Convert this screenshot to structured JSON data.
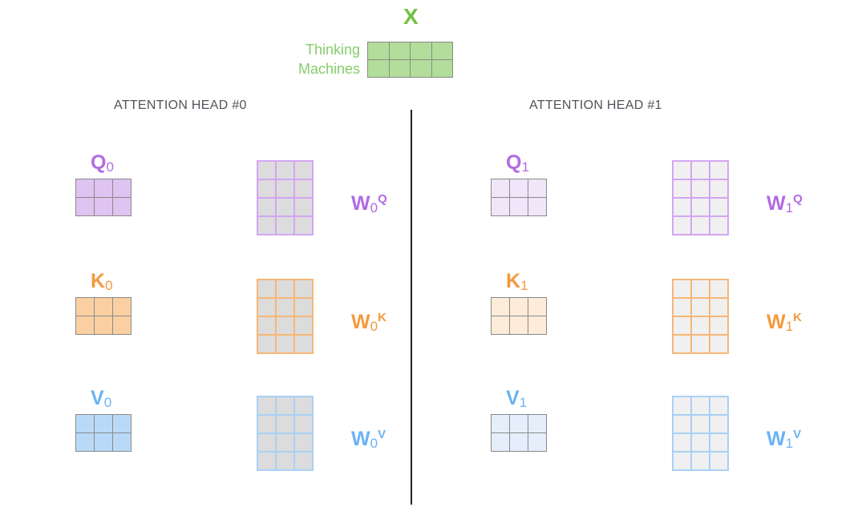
{
  "input": {
    "label": "X",
    "words": [
      "Thinking",
      "Machines"
    ],
    "color": "#74c044",
    "fill": "#b2dd9a"
  },
  "heads": [
    {
      "title": "ATTENTION HEAD #0",
      "index": "0",
      "rows": [
        {
          "name": "Q",
          "weight": "W",
          "sup": "Q",
          "color": "#b36ae2",
          "fill": "#dfc3f0",
          "wborder": "#d3a6f2",
          "wfill": "#dcdcdc"
        },
        {
          "name": "K",
          "weight": "W",
          "sup": "K",
          "color": "#f39a3c",
          "fill": "#fad0a2",
          "wborder": "#f6b775",
          "wfill": "#dcdcdc"
        },
        {
          "name": "V",
          "weight": "W",
          "sup": "V",
          "color": "#6cb2f3",
          "fill": "#b9d9f8",
          "wborder": "#a9d0f7",
          "wfill": "#dcdcdc"
        }
      ]
    },
    {
      "title": "ATTENTION HEAD #1",
      "index": "1",
      "rows": [
        {
          "name": "Q",
          "weight": "W",
          "sup": "Q",
          "color": "#b36ae2",
          "fill": "#f1e5f9",
          "wborder": "#d3a6f2",
          "wfill": "#f0f0f0"
        },
        {
          "name": "K",
          "weight": "W",
          "sup": "K",
          "color": "#f39a3c",
          "fill": "#fdecd8",
          "wborder": "#f6b775",
          "wfill": "#f0f0f0"
        },
        {
          "name": "V",
          "weight": "W",
          "sup": "V",
          "color": "#6cb2f3",
          "fill": "#e4effb",
          "wborder": "#a9d0f7",
          "wfill": "#f0f0f0"
        }
      ]
    }
  ]
}
